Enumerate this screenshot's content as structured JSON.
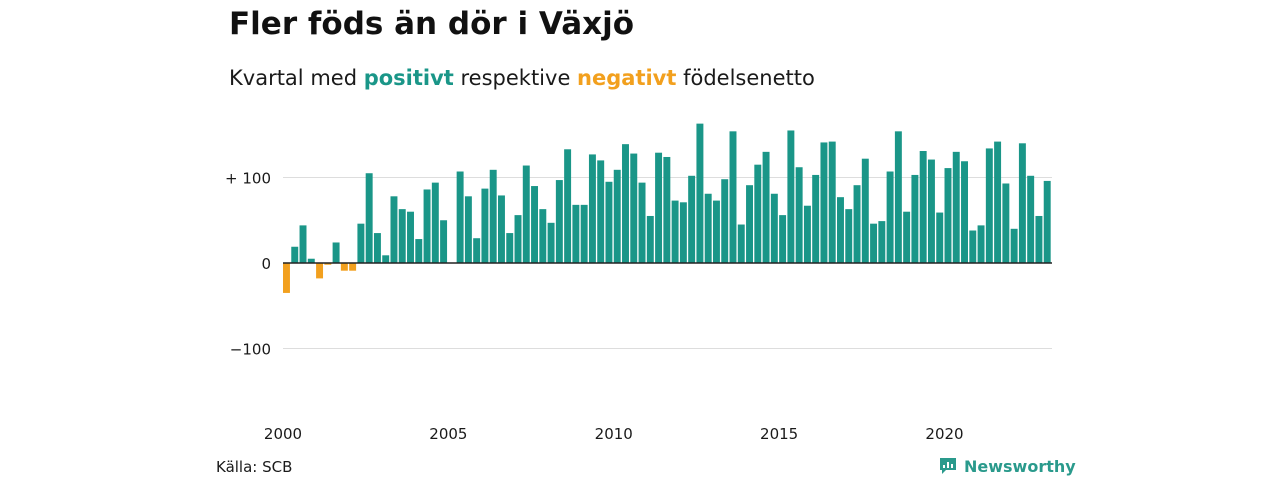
{
  "title": "Fler föds än dör i Växjö",
  "subtitle": {
    "prefix": "Kvartal med ",
    "positive": "positivt",
    "middle": " respektive ",
    "negative": "negativt",
    "suffix": " födelsenetto"
  },
  "source": "Källa: SCB",
  "brand": "Newsworthy",
  "colors": {
    "positive": "#1a9688",
    "negative": "#f2a01e",
    "grid": "#dddddd",
    "zero": "#222222"
  },
  "chart_data": {
    "type": "bar",
    "x_start": "2000 Q1",
    "x_ticks": [
      "2000",
      "2005",
      "2010",
      "2015",
      "2020"
    ],
    "y_ticks": [
      "+ 100",
      "0",
      "−100"
    ],
    "y_tick_values": [
      100,
      0,
      -100
    ],
    "ylim": [
      -130,
      165
    ],
    "grid": true,
    "values": [
      -35,
      19,
      44,
      5,
      -18,
      -2,
      24,
      -9,
      -9,
      46,
      105,
      35,
      9,
      78,
      63,
      60,
      28,
      86,
      94,
      50,
      0,
      107,
      78,
      29,
      87,
      109,
      79,
      35,
      56,
      114,
      90,
      63,
      47,
      97,
      133,
      68,
      68,
      127,
      120,
      95,
      109,
      139,
      128,
      94,
      55,
      129,
      124,
      73,
      71,
      102,
      163,
      81,
      73,
      98,
      154,
      45,
      91,
      115,
      130,
      81,
      56,
      155,
      112,
      67,
      103,
      141,
      142,
      77,
      63,
      91,
      122,
      46,
      49,
      107,
      154,
      60,
      103,
      131,
      121,
      59,
      111,
      130,
      119,
      38,
      44,
      134,
      142,
      93,
      40,
      140,
      102,
      55,
      96
    ]
  }
}
